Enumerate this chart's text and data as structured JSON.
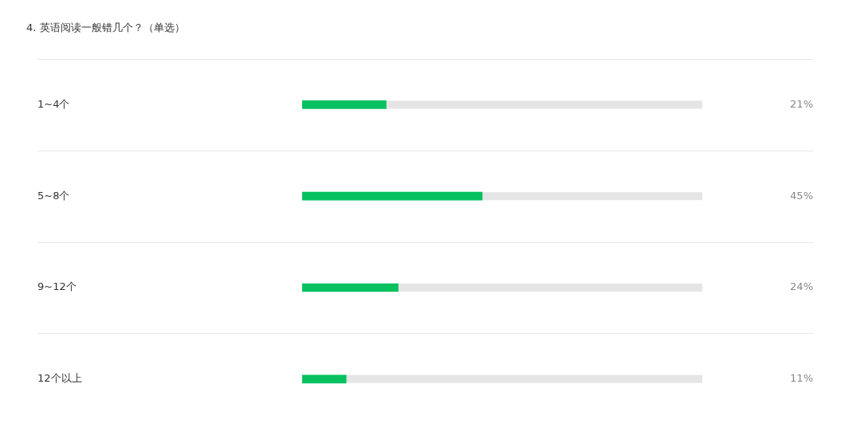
{
  "chart_data": {
    "type": "bar",
    "orientation": "horizontal",
    "title": "4. 英语阅读一般错几个？（单选）",
    "categories": [
      "1~4个",
      "5~8个",
      "9~12个",
      "12个以上"
    ],
    "values": [
      21,
      45,
      24,
      11
    ],
    "color": "#07c160",
    "value_labels": [
      "21%",
      "45%",
      "24%",
      "11%"
    ],
    "xlim": [
      0,
      100
    ],
    "tick_labels": "y",
    "grid": "y",
    "legend": false
  }
}
